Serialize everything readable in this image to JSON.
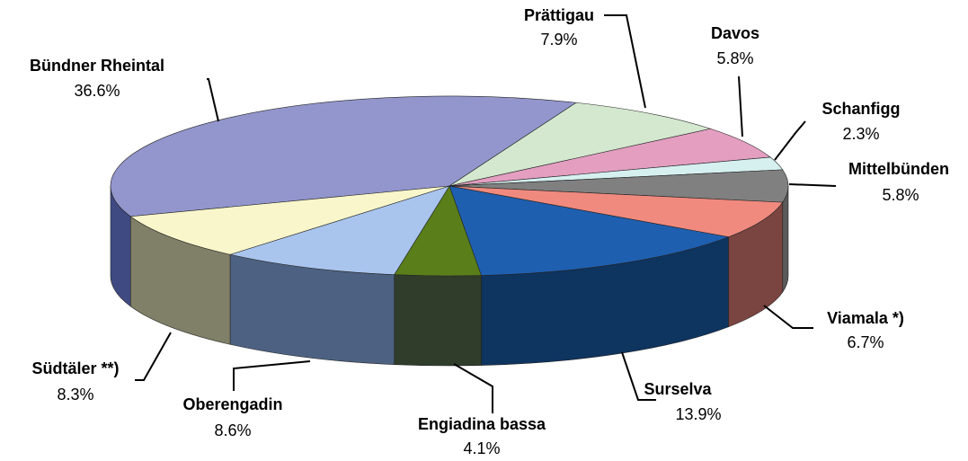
{
  "chart_data": {
    "type": "pie3d",
    "categories": [
      "Bündner Rheintal",
      "Prättigau",
      "Davos",
      "Schanfigg",
      "Mittelbünden",
      "Viamala *)",
      "Surselva",
      "Engiadina bassa",
      "Oberengadin",
      "Südtäler **)"
    ],
    "values": [
      36.6,
      7.9,
      5.8,
      2.3,
      5.8,
      6.7,
      13.9,
      4.1,
      8.6,
      8.3
    ],
    "value_labels": [
      "36.6%",
      "7.9%",
      "5.8%",
      "2.3%",
      "5.8%",
      "6.7%",
      "13.9%",
      "4.1%",
      "8.6%",
      "8.3%"
    ],
    "colors": [
      "#9296cc",
      "#d4e8cf",
      "#e39ec0",
      "#d6f0f0",
      "#808080",
      "#f08a7e",
      "#1f5fb0",
      "#5a7e1a",
      "#a9c5ee",
      "#faf6cc"
    ],
    "side_colors": [
      "#3f4a82",
      "#7a8a76",
      "#8a5a70",
      "#7a8c8c",
      "#5a5a5a",
      "#7a4440",
      "#0e3460",
      "#2f3d2a",
      "#4d6282",
      "#808068"
    ]
  }
}
